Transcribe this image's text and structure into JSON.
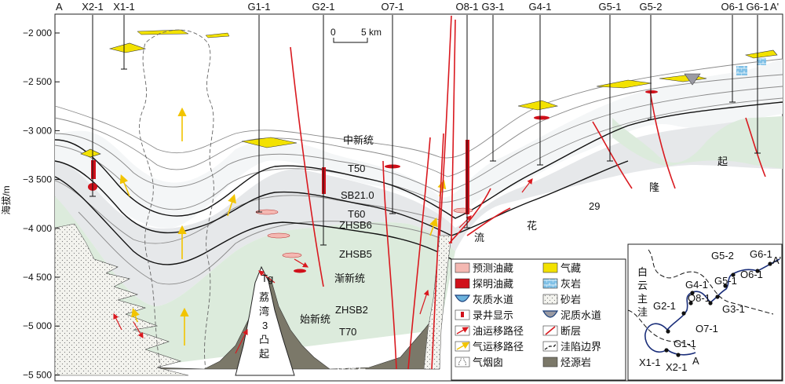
{
  "section": {
    "endpoint_left": "A",
    "endpoint_right": "A'",
    "wells": [
      "X2-1",
      "X1-1",
      "G1-1",
      "G2-1",
      "O7-1",
      "O8-1",
      "G3-1",
      "G4-1",
      "G5-1",
      "G5-2",
      "O6-1",
      "G6-1"
    ],
    "y_axis": {
      "title": "海拔/m",
      "ticks": [
        "−2 000",
        "−2 500",
        "−3 000",
        "−3 500",
        "−4 000",
        "−4 500",
        "−5 000",
        "−5 500"
      ],
      "range": [
        -5500,
        -2000
      ]
    },
    "scale_bar": {
      "zero": "0",
      "label": "5 km"
    }
  },
  "horizons": {
    "zhongxin": "中新统",
    "t50": "T50",
    "sb21": "SB21.0",
    "t60": "T60",
    "zhsb6": "ZHSB6",
    "zhsb5": "ZHSB5",
    "jianxin": "渐新统",
    "zhsb2": "ZHSB2",
    "shixin": "始新统",
    "t70": "T70",
    "tg": "Tg"
  },
  "annotations": {
    "liwan_1": "荔",
    "liwan_2": "湾",
    "liwan_3": "3",
    "liwan_4": "凸",
    "liwan_5": "起",
    "source_1": "白云主洼",
    "source_2": "烃源岩",
    "liu": "流",
    "hua": "花",
    "num29": "29",
    "long": "隆",
    "qi": "起"
  },
  "legend": {
    "predicted_reservoir": "预测油藏",
    "proven_reservoir": "探明油藏",
    "calcareous_channel": "灰质水道",
    "logging_show": "录井显示",
    "oil_migration": "油运移路径",
    "gas_migration": "气运移路径",
    "gas_chimney": "气烟囱",
    "gas_reservoir": "气藏",
    "limestone": "灰岩",
    "sandstone": "砂岩",
    "mudstone_channel": "泥质水道",
    "fault": "断层",
    "sag_boundary": "洼陷边界",
    "source_rock": "烃源岩"
  },
  "inset": {
    "label_1": "白",
    "label_2": "云",
    "label_3": "主",
    "label_4": "洼",
    "wells": [
      "G5-2",
      "G6-1",
      "G4-1",
      "G5-1",
      "O6-1",
      "O8-1",
      "G3-1",
      "G2-1",
      "O7-1",
      "G1-1",
      "X1-1",
      "X2-1"
    ],
    "end_a": "A",
    "end_a2": "A'"
  },
  "colors": {
    "predicted_reservoir": "#f4b8b2",
    "proven_reservoir": "#d0101a",
    "gas_reservoir": "#f3e200",
    "source_rock": "#7b7869",
    "eocene": "#dcebdc",
    "fault": "#d9191f",
    "limestone": "#6cb2dd",
    "sandstone": "#f2f2ec"
  }
}
